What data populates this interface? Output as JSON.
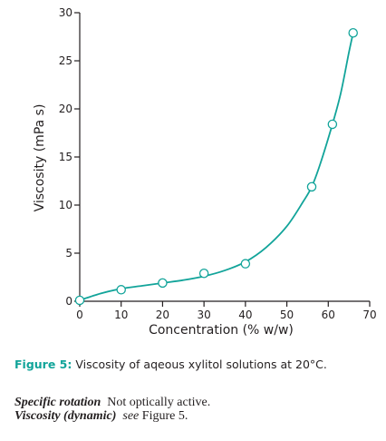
{
  "chart_data": {
    "type": "line",
    "xlabel": "Concentration (% w/w)",
    "ylabel": "Viscosity (mPa s)",
    "xlim": [
      0,
      70
    ],
    "ylim": [
      0,
      30
    ],
    "xticks": [
      0,
      10,
      20,
      30,
      40,
      50,
      60,
      70
    ],
    "yticks": [
      0,
      5,
      10,
      15,
      20,
      25,
      30
    ],
    "grid": false,
    "line_color": "#12a49a",
    "marker": "open-circle",
    "points": [
      {
        "x": 0,
        "y": 0.1
      },
      {
        "x": 10,
        "y": 1.2
      },
      {
        "x": 20,
        "y": 1.9
      },
      {
        "x": 30,
        "y": 2.9
      },
      {
        "x": 40,
        "y": 3.9
      },
      {
        "x": 56,
        "y": 11.9
      },
      {
        "x": 61,
        "y": 18.4
      },
      {
        "x": 66,
        "y": 27.9
      }
    ],
    "curve": [
      {
        "x": 0,
        "y": 0.1
      },
      {
        "x": 5,
        "y": 0.8
      },
      {
        "x": 10,
        "y": 1.3
      },
      {
        "x": 15,
        "y": 1.6
      },
      {
        "x": 20,
        "y": 1.9
      },
      {
        "x": 25,
        "y": 2.2
      },
      {
        "x": 30,
        "y": 2.6
      },
      {
        "x": 35,
        "y": 3.2
      },
      {
        "x": 40,
        "y": 4.1
      },
      {
        "x": 45,
        "y": 5.6
      },
      {
        "x": 50,
        "y": 7.8
      },
      {
        "x": 54,
        "y": 10.4
      },
      {
        "x": 56,
        "y": 11.9
      },
      {
        "x": 58,
        "y": 14.2
      },
      {
        "x": 61,
        "y": 18.4
      },
      {
        "x": 63,
        "y": 21.6
      },
      {
        "x": 65,
        "y": 25.9
      },
      {
        "x": 66,
        "y": 27.9
      }
    ]
  },
  "caption": {
    "label": "Figure 5:",
    "text": "Viscosity of aqeous xylitol solutions at 20°C."
  },
  "properties": [
    {
      "name": "Specific rotation",
      "value": "Not optically active.",
      "value_italic": false
    },
    {
      "name": "Viscosity (dynamic)",
      "value": "see",
      "value_italic": true,
      "suffix": "Figure 5."
    }
  ]
}
